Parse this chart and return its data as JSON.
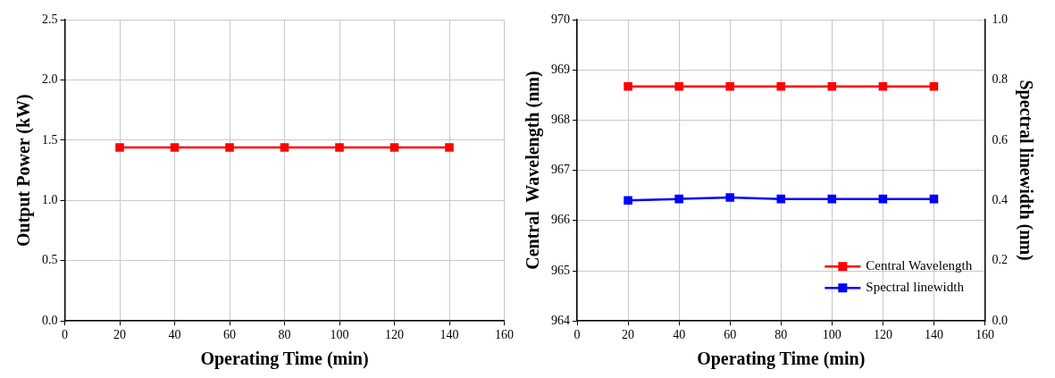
{
  "chart_data": [
    {
      "type": "line",
      "xlabel": "Operating Time (min)",
      "ylabel": "Output Power (kW)",
      "x": [
        20,
        40,
        60,
        80,
        100,
        120,
        140
      ],
      "xlim": [
        0,
        160
      ],
      "xticks": [
        0,
        20,
        40,
        60,
        80,
        100,
        120,
        140,
        160
      ],
      "ylim": [
        0,
        2.5
      ],
      "yticks": [
        {
          "value": 0,
          "label": "0.0"
        },
        {
          "value": 0.5,
          "label": "0.5"
        },
        {
          "value": 1,
          "label": "1.0"
        },
        {
          "value": 1.5,
          "label": "1.5"
        },
        {
          "value": 2,
          "label": "2.0"
        },
        {
          "value": 2.5,
          "label": "2.5"
        }
      ],
      "grid": true,
      "marker": "square",
      "line_style": "solid",
      "legend": false,
      "series": [
        {
          "color": "#ff0000",
          "values": [
            1.44,
            1.44,
            1.44,
            1.44,
            1.44,
            1.44,
            1.44
          ]
        }
      ]
    },
    {
      "type": "line",
      "xlabel": "Operating Time (min)",
      "ylabel": "Central  Wavelength (nm)",
      "y2label": "Spectral linewidth (nm)",
      "x": [
        20,
        40,
        60,
        80,
        100,
        120,
        140
      ],
      "xlim": [
        0,
        160
      ],
      "xticks": [
        0,
        20,
        40,
        60,
        80,
        100,
        120,
        140,
        160
      ],
      "ylim": [
        964,
        970
      ],
      "yticks": [
        964,
        965,
        966,
        967,
        968,
        969,
        970
      ],
      "y2lim": [
        0,
        1
      ],
      "y2ticks": [
        {
          "value": 0,
          "label": "0.0"
        },
        {
          "value": 0.2,
          "label": "0.2"
        },
        {
          "value": 0.4,
          "label": "0.4"
        },
        {
          "value": 0.6,
          "label": "0.6"
        },
        {
          "value": 0.8,
          "label": "0.8"
        },
        {
          "value": 1,
          "label": "1.0"
        }
      ],
      "grid": true,
      "marker": "square",
      "line_style": "solid",
      "legend": "bottom right",
      "series": [
        {
          "name": "Central Wavelength",
          "color": "#ff0000",
          "values": [
            968.67,
            968.67,
            968.67,
            968.67,
            968.67,
            968.67,
            968.67
          ]
        },
        {
          "name": "Spectral linewidth",
          "color": "#0000ff",
          "axis": "y2",
          "values": [
            0.4,
            0.405,
            0.41,
            0.405,
            0.405,
            0.405,
            0.405
          ]
        }
      ]
    }
  ]
}
